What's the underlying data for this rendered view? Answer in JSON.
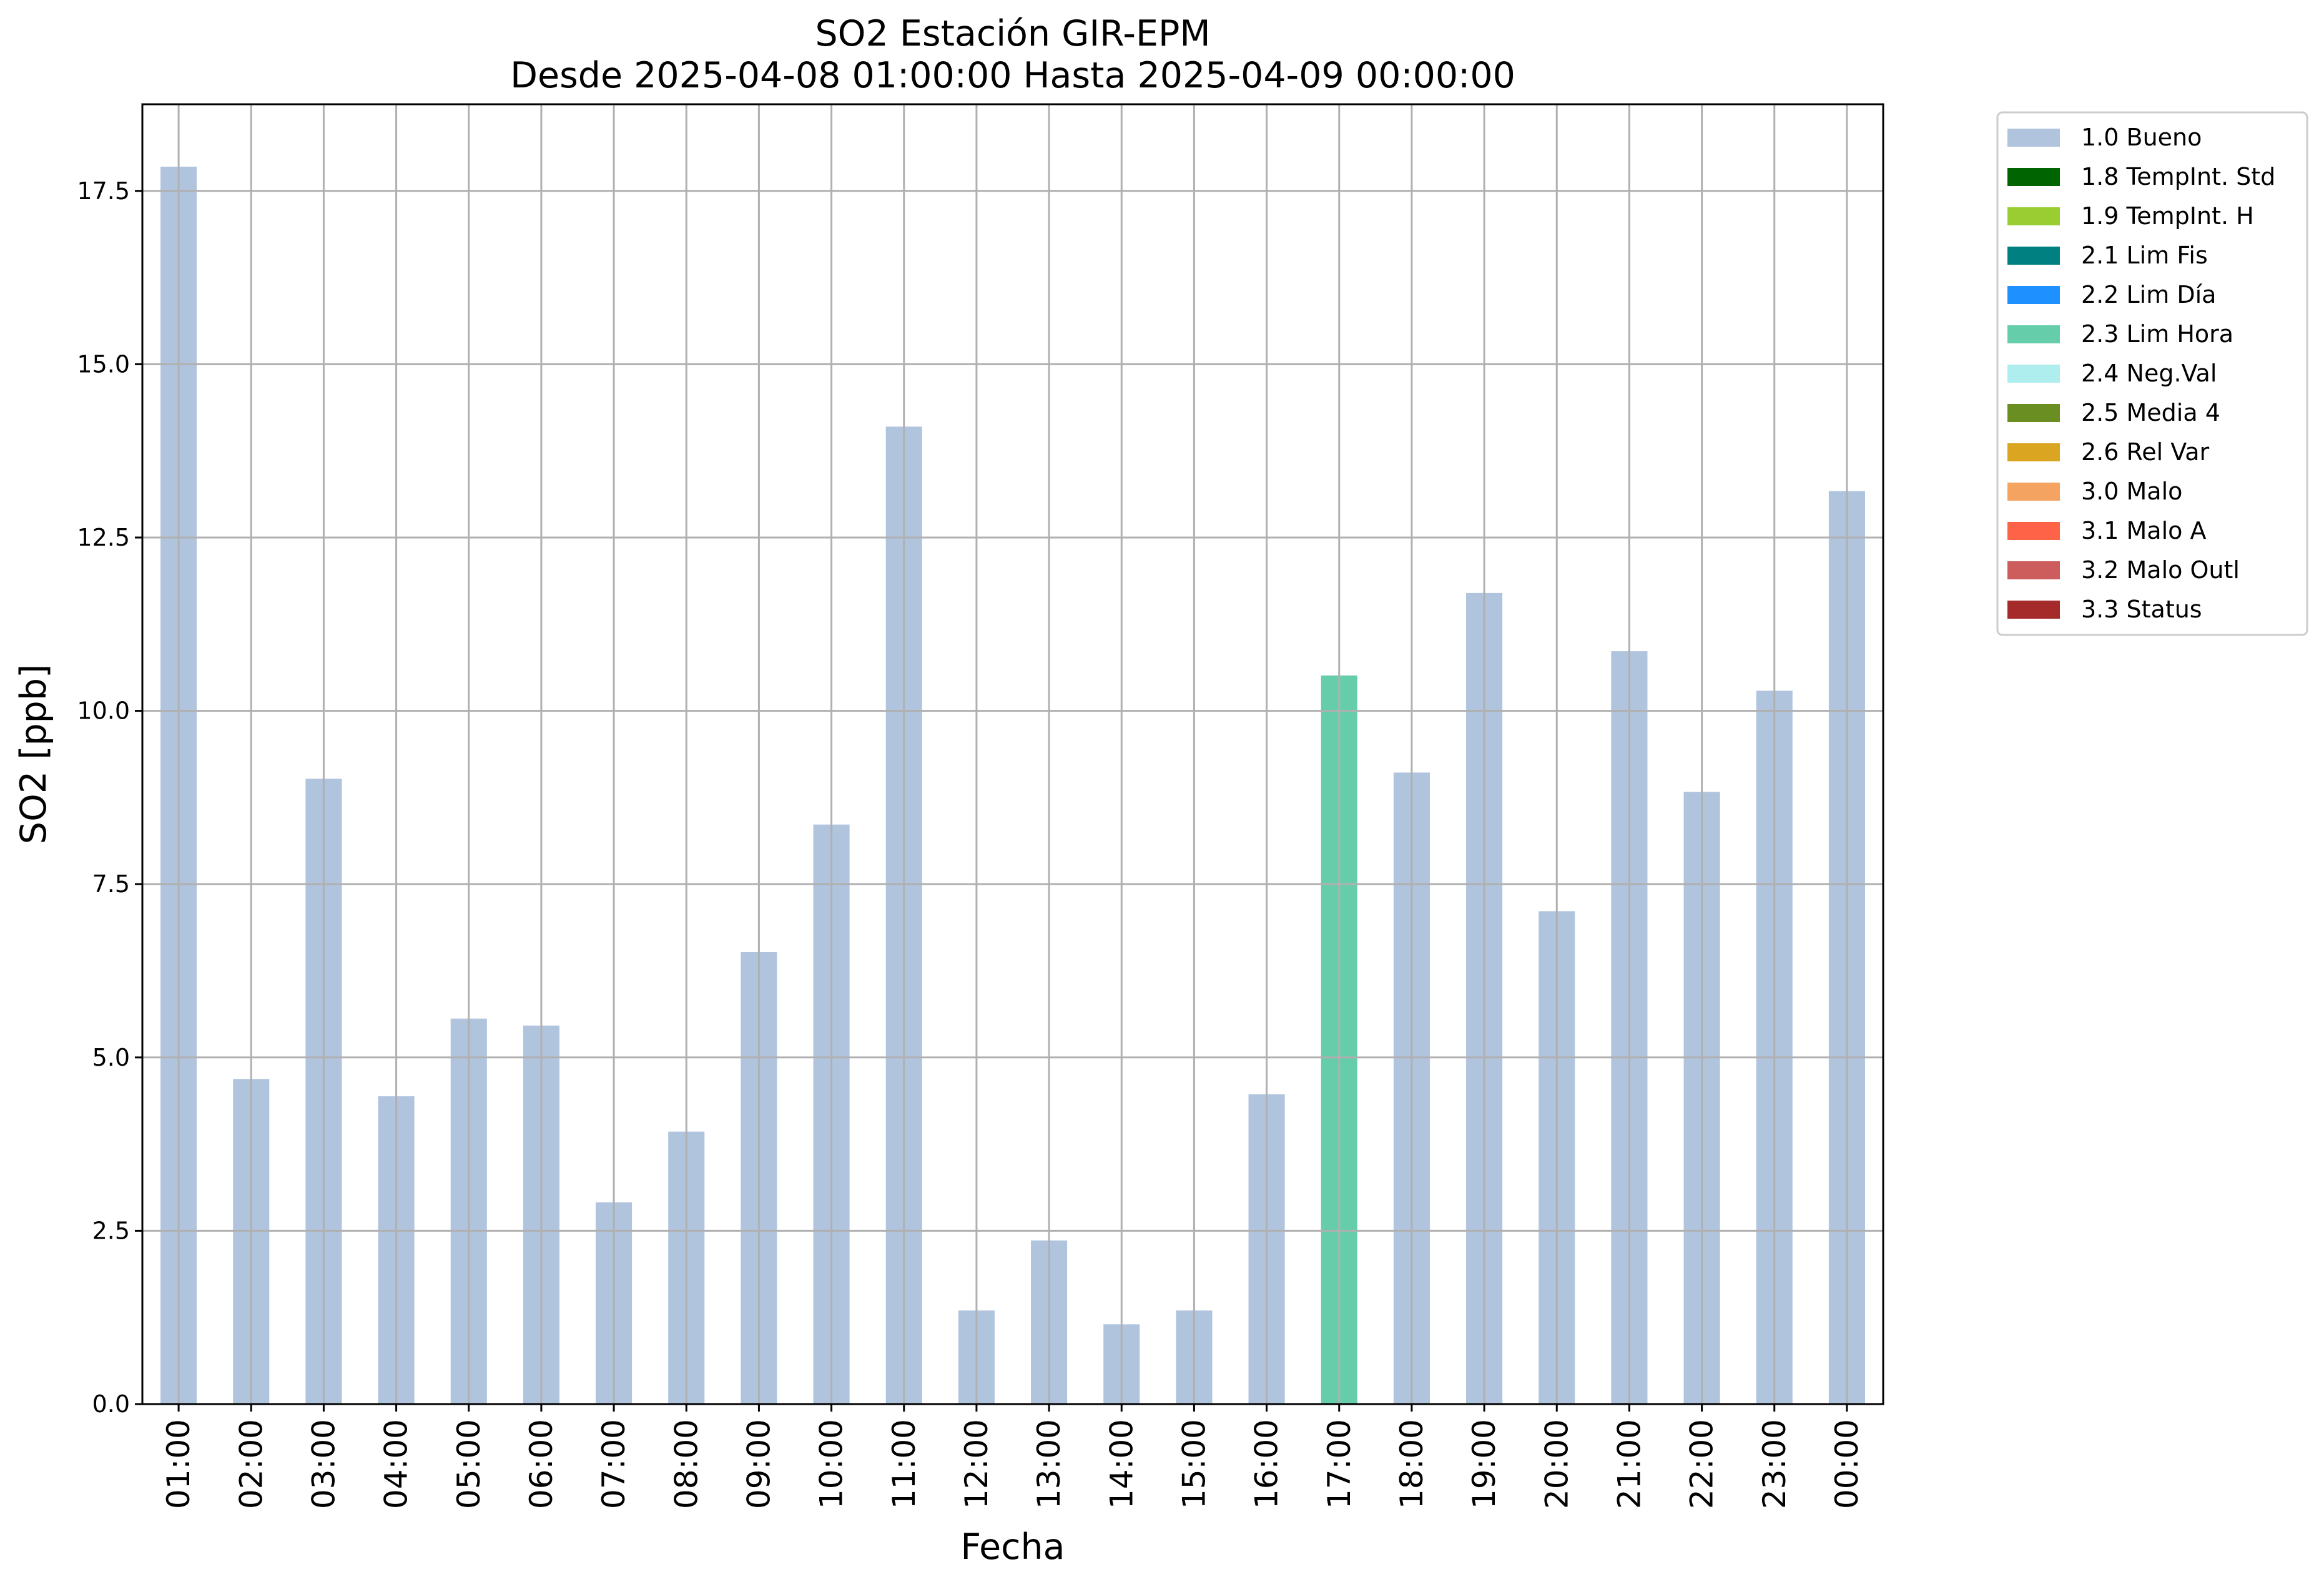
{
  "chart_data": {
    "type": "bar",
    "title": "SO2 Estación GIR-EPM",
    "subtitle": "Desde 2025-04-08 01:00:00 Hasta 2025-04-09 00:00:00",
    "xlabel": "Fecha",
    "ylabel": "SO2 [ppb]",
    "ylim": [
      0,
      18.75
    ],
    "yticks": [
      0.0,
      2.5,
      5.0,
      7.5,
      10.0,
      12.5,
      15.0,
      17.5
    ],
    "ytick_labels": [
      "0.0",
      "2.5",
      "5.0",
      "7.5",
      "10.0",
      "12.5",
      "15.0",
      "17.5"
    ],
    "grid": true,
    "legend_position": "outside-top-right",
    "categories": [
      "01:00",
      "02:00",
      "03:00",
      "04:00",
      "05:00",
      "06:00",
      "07:00",
      "08:00",
      "09:00",
      "10:00",
      "11:00",
      "12:00",
      "13:00",
      "14:00",
      "15:00",
      "16:00",
      "17:00",
      "18:00",
      "19:00",
      "20:00",
      "21:00",
      "22:00",
      "23:00",
      "00:00"
    ],
    "values": [
      17.85,
      4.69,
      9.02,
      4.44,
      5.56,
      5.46,
      2.91,
      3.93,
      6.52,
      8.36,
      14.1,
      1.35,
      2.36,
      1.15,
      1.35,
      4.47,
      10.51,
      9.11,
      11.7,
      7.11,
      10.86,
      8.83,
      10.29,
      13.17
    ],
    "flags": [
      "1.0",
      "1.0",
      "1.0",
      "1.0",
      "1.0",
      "1.0",
      "1.0",
      "1.0",
      "1.0",
      "1.0",
      "1.0",
      "1.0",
      "1.0",
      "1.0",
      "1.0",
      "1.0",
      "2.3",
      "1.0",
      "1.0",
      "1.0",
      "1.0",
      "1.0",
      "1.0",
      "1.0"
    ],
    "legend": [
      {
        "code": "1.0",
        "label": "1.0 Bueno",
        "color": "#b0c4de"
      },
      {
        "code": "1.8",
        "label": "1.8 TempInt. Std",
        "color": "#006400"
      },
      {
        "code": "1.9",
        "label": "1.9 TempInt. H",
        "color": "#9acd32"
      },
      {
        "code": "2.1",
        "label": "2.1 Lim Fis",
        "color": "#008080"
      },
      {
        "code": "2.2",
        "label": "2.2 Lim Día",
        "color": "#1e90ff"
      },
      {
        "code": "2.3",
        "label": "2.3 Lim Hora",
        "color": "#66cdaa"
      },
      {
        "code": "2.4",
        "label": "2.4 Neg.Val",
        "color": "#afeeee"
      },
      {
        "code": "2.5",
        "label": "2.5 Media 4",
        "color": "#6b8e23"
      },
      {
        "code": "2.6",
        "label": "2.6 Rel Var",
        "color": "#daa520"
      },
      {
        "code": "3.0",
        "label": "3.0 Malo",
        "color": "#f4a460"
      },
      {
        "code": "3.1",
        "label": "3.1 Malo A",
        "color": "#ff6347"
      },
      {
        "code": "3.2",
        "label": "3.2 Malo Outl",
        "color": "#cd5c5c"
      },
      {
        "code": "3.3",
        "label": "3.3 Status",
        "color": "#a52a2a"
      }
    ]
  }
}
